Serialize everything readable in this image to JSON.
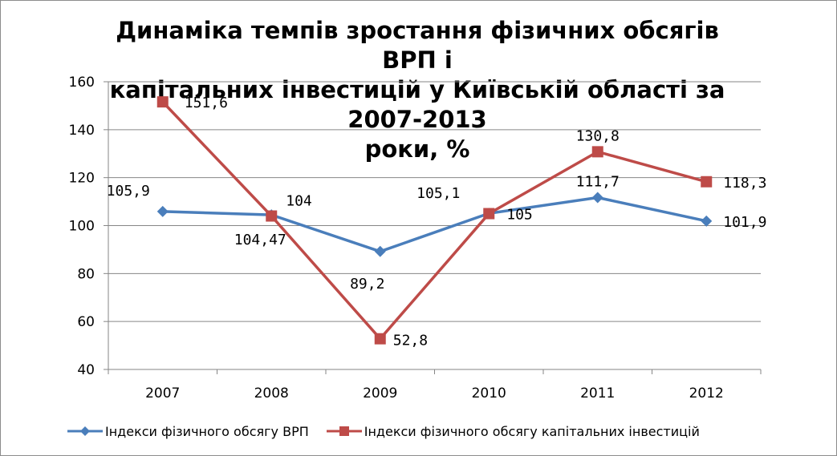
{
  "chart_data": {
    "type": "line",
    "title": [
      "Динаміка темпів зростання фізичних обсягів ВРП і",
      "капітальних інвестицій у Київській області за 2007-2013",
      "роки, %"
    ],
    "categories": [
      "2007",
      "2008",
      "2009",
      "2010",
      "2011",
      "2012"
    ],
    "ylim": [
      40,
      160
    ],
    "yticks": [
      "40",
      "60",
      "80",
      "100",
      "120",
      "140",
      "160"
    ],
    "grid": true,
    "legend_position": "bottom",
    "series": [
      {
        "name": "Індекси фізичного обсягу ВРП",
        "color": "#4a7ebb",
        "marker": "diamond",
        "values": [
          105.9,
          104.47,
          89.2,
          105.1,
          111.7,
          101.9
        ],
        "labels": [
          "105,9",
          "104,47",
          "89,2",
          "105,1",
          "111,7",
          "101,9"
        ]
      },
      {
        "name": "Індекси фізичного обсягу капітальних інвестицій",
        "color": "#be4b48",
        "marker": "square",
        "values": [
          151.6,
          104,
          52.8,
          105,
          130.8,
          118.3
        ],
        "labels": [
          "151,6",
          "104",
          "52,8",
          "105",
          "130,8",
          "118,3"
        ]
      }
    ]
  }
}
